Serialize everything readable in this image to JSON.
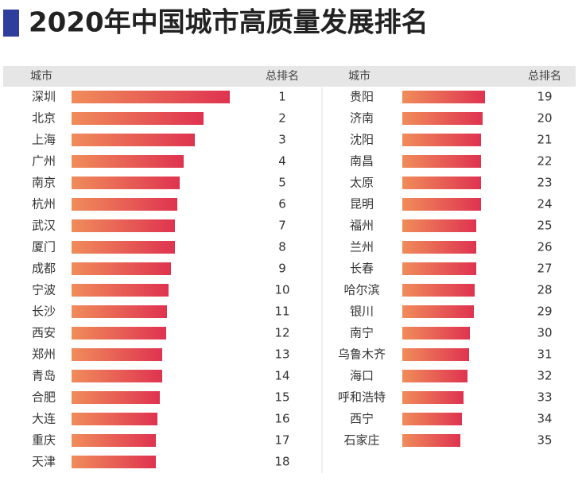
{
  "title": "2020年中国城市高质量发展排名",
  "chart_data": [
    {
      "type": "bar",
      "header": [
        "城市",
        "总排名"
      ],
      "categories": [
        "深圳",
        "北京",
        "上海",
        "广州",
        "南京",
        "杭州",
        "武汉",
        "厦门",
        "成都",
        "宁波",
        "长沙",
        "西安",
        "郑州",
        "青岛",
        "合肥",
        "大连",
        "重庆",
        "天津"
      ],
      "values": [
        199,
        166,
        155,
        141,
        136,
        133,
        130,
        130,
        125,
        122,
        120,
        119,
        114,
        114,
        111,
        108,
        106,
        106
      ],
      "ranks": [
        1,
        2,
        3,
        4,
        5,
        6,
        7,
        8,
        9,
        10,
        11,
        12,
        13,
        14,
        15,
        16,
        17,
        18
      ],
      "xlim": [
        0,
        200
      ]
    },
    {
      "type": "bar",
      "header": [
        "城市",
        "总排名"
      ],
      "categories": [
        "贵阳",
        "济南",
        "沈阳",
        "南昌",
        "太原",
        "昆明",
        "福州",
        "兰州",
        "长春",
        "哈尔滨",
        "银川",
        "南宁",
        "乌鲁木齐",
        "海口",
        "呼和浩特",
        "西宁",
        "石家庄"
      ],
      "values": [
        104,
        101,
        99,
        99,
        99,
        99,
        93,
        93,
        93,
        91,
        90,
        85,
        84,
        82,
        77,
        75,
        73
      ],
      "ranks": [
        19,
        20,
        21,
        22,
        23,
        24,
        25,
        26,
        27,
        28,
        29,
        30,
        31,
        32,
        33,
        34,
        35
      ],
      "xlim": [
        0,
        200
      ]
    }
  ]
}
